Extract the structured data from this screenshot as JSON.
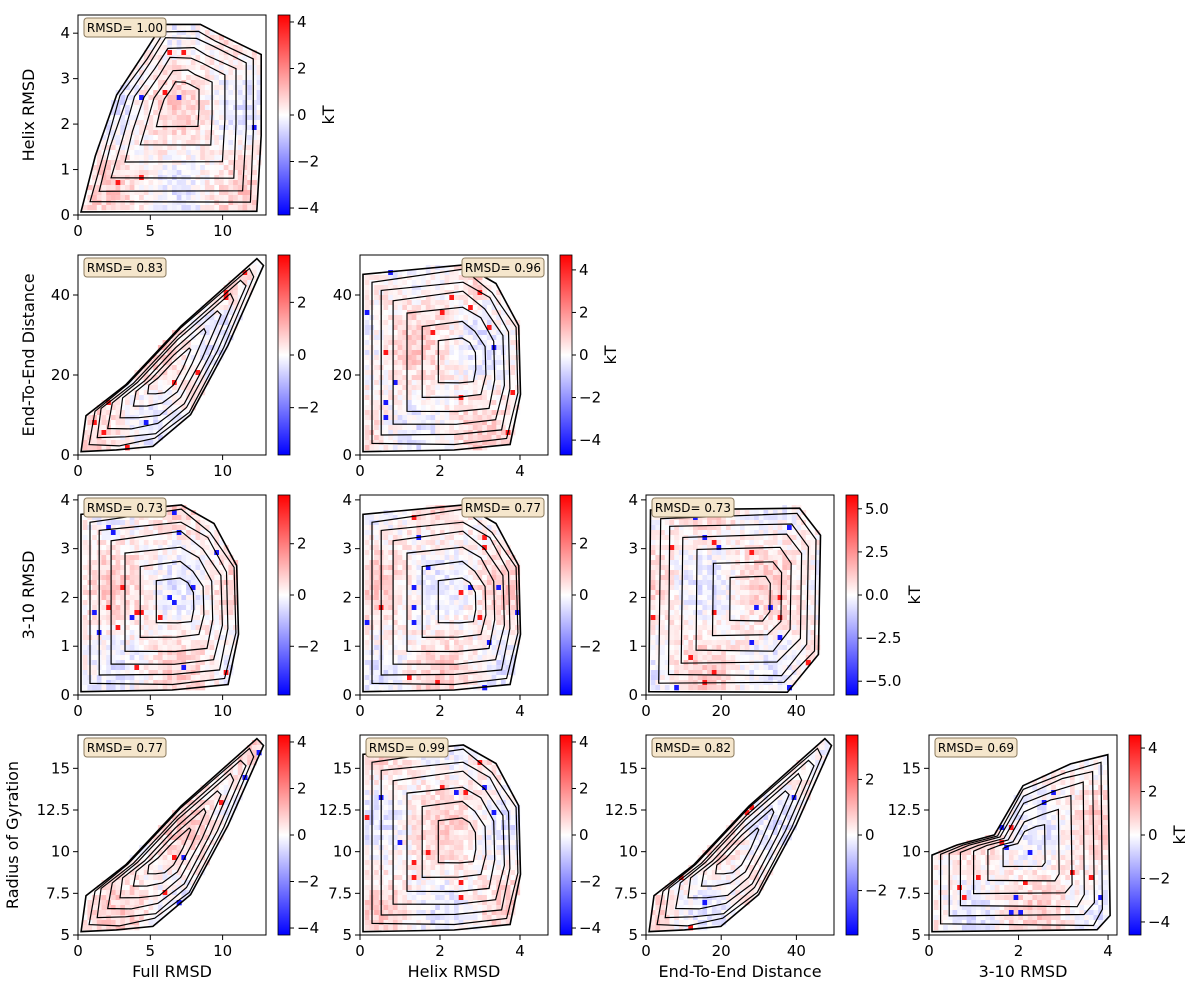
{
  "figure": {
    "axis_labels": {
      "full_rmsd": "Full RMSD",
      "helix_rmsd": "Helix RMSD",
      "end_to_end": "End-To-End Distance",
      "rmsd_3_10": "3-10 RMSD",
      "radius_gyration": "Radius of Gyration"
    },
    "colorbar_label": "kT",
    "colormap": [
      "#0000ff",
      "#ffffff",
      "#ff0000"
    ],
    "contour_color": "#000000",
    "badge_fill": "#f5e6cc",
    "badge_stroke": "#8c7b5e"
  },
  "chart_data": [
    {
      "type": "heatmap",
      "row": 0,
      "col": 0,
      "ylabel": "Helix RMSD",
      "xlabel": "",
      "xlim": [
        0,
        13
      ],
      "ylim": [
        0,
        4.4
      ],
      "xticks": [
        0,
        5,
        10
      ],
      "yticks": [
        0,
        1,
        2,
        3,
        4
      ],
      "annotation": "RMSD= 1.00",
      "colorbar": {
        "label": "kT",
        "range": [
          -4.3,
          4.3
        ],
        "ticks": [
          -4,
          -2,
          0,
          2,
          4
        ],
        "tick_labels": [
          "−4",
          "−2",
          "0",
          "2",
          "4"
        ]
      }
    },
    {
      "type": "heatmap",
      "row": 1,
      "col": 0,
      "ylabel": "End-To-End Distance",
      "xlabel": "",
      "xlim": [
        0,
        13
      ],
      "ylim": [
        0,
        50
      ],
      "xticks": [
        0,
        5,
        10
      ],
      "yticks": [
        0,
        20,
        40
      ],
      "annotation": "RMSD= 0.83",
      "colorbar": {
        "label": "",
        "range": [
          -3.8,
          3.8
        ],
        "ticks": [
          -2,
          0,
          2
        ],
        "tick_labels": [
          "−2",
          "0",
          "2"
        ]
      }
    },
    {
      "type": "heatmap",
      "row": 1,
      "col": 1,
      "ylabel": "",
      "xlabel": "",
      "xlim": [
        0,
        4.7
      ],
      "ylim": [
        0,
        50
      ],
      "xticks": [
        0,
        2,
        4
      ],
      "yticks": [
        0,
        20,
        40
      ],
      "annotation": "RMSD= 0.96",
      "colorbar": {
        "label": "kT",
        "range": [
          -4.7,
          4.7
        ],
        "ticks": [
          -4,
          -2,
          0,
          2,
          4
        ],
        "tick_labels": [
          "−4",
          "−2",
          "0",
          "2",
          "4"
        ]
      }
    },
    {
      "type": "heatmap",
      "row": 2,
      "col": 0,
      "ylabel": "3-10 RMSD",
      "xlabel": "",
      "xlim": [
        0,
        13
      ],
      "ylim": [
        0,
        4.1
      ],
      "xticks": [
        0,
        5,
        10
      ],
      "yticks": [
        0,
        1,
        2,
        3,
        4
      ],
      "annotation": "RMSD= 0.73",
      "colorbar": {
        "label": "",
        "range": [
          -3.9,
          3.9
        ],
        "ticks": [
          -2,
          0,
          2
        ],
        "tick_labels": [
          "−2",
          "0",
          "2"
        ]
      }
    },
    {
      "type": "heatmap",
      "row": 2,
      "col": 1,
      "ylabel": "",
      "xlabel": "",
      "xlim": [
        0,
        4.7
      ],
      "ylim": [
        0,
        4.1
      ],
      "xticks": [
        0,
        2,
        4
      ],
      "yticks": [
        0,
        1,
        2,
        3,
        4
      ],
      "annotation": "RMSD= 0.77",
      "colorbar": {
        "label": "",
        "range": [
          -3.9,
          3.9
        ],
        "ticks": [
          -2,
          0,
          2
        ],
        "tick_labels": [
          "−2",
          "0",
          "2"
        ]
      }
    },
    {
      "type": "heatmap",
      "row": 2,
      "col": 2,
      "ylabel": "",
      "xlabel": "",
      "xlim": [
        0,
        50
      ],
      "ylim": [
        0,
        4.1
      ],
      "xticks": [
        0,
        20,
        40
      ],
      "yticks": [
        0,
        1,
        2,
        3,
        4
      ],
      "annotation": "RMSD= 0.73",
      "colorbar": {
        "label": "kT",
        "range": [
          -5.8,
          5.8
        ],
        "ticks": [
          -5,
          -2.5,
          0,
          2.5,
          5
        ],
        "tick_labels": [
          "−5.0",
          "−2.5",
          "0.0",
          "2.5",
          "5.0"
        ]
      }
    },
    {
      "type": "heatmap",
      "row": 3,
      "col": 0,
      "ylabel": "Radius of Gyration",
      "xlabel": "Full RMSD",
      "xlim": [
        0,
        13
      ],
      "ylim": [
        5,
        17
      ],
      "xticks": [
        0,
        5,
        10
      ],
      "yticks": [
        5,
        7.5,
        10,
        12.5,
        15
      ],
      "annotation": "RMSD= 0.77",
      "colorbar": {
        "label": "",
        "range": [
          -4.3,
          4.3
        ],
        "ticks": [
          -4,
          -2,
          0,
          2,
          4
        ],
        "tick_labels": [
          "−4",
          "−2",
          "0",
          "2",
          "4"
        ]
      }
    },
    {
      "type": "heatmap",
      "row": 3,
      "col": 1,
      "ylabel": "",
      "xlabel": "Helix RMSD",
      "xlim": [
        0,
        4.7
      ],
      "ylim": [
        5,
        17
      ],
      "xticks": [
        0,
        2,
        4
      ],
      "yticks": [
        5,
        7.5,
        10,
        12.5,
        15
      ],
      "annotation": "RMSD= 0.99",
      "colorbar": {
        "label": "",
        "range": [
          -4.3,
          4.3
        ],
        "ticks": [
          -4,
          -2,
          0,
          2,
          4
        ],
        "tick_labels": [
          "−4",
          "−2",
          "0",
          "2",
          "4"
        ]
      }
    },
    {
      "type": "heatmap",
      "row": 3,
      "col": 2,
      "ylabel": "",
      "xlabel": "End-To-End Distance",
      "xlim": [
        0,
        50
      ],
      "ylim": [
        5,
        17
      ],
      "xticks": [
        0,
        20,
        40
      ],
      "yticks": [
        5,
        7.5,
        10,
        12.5,
        15
      ],
      "annotation": "RMSD= 0.82",
      "colorbar": {
        "label": "",
        "range": [
          -3.6,
          3.6
        ],
        "ticks": [
          -2,
          0,
          2
        ],
        "tick_labels": [
          "−2",
          "0",
          "2"
        ]
      }
    },
    {
      "type": "heatmap",
      "row": 3,
      "col": 3,
      "ylabel": "",
      "xlabel": "3-10 RMSD",
      "xlim": [
        0,
        4.2
      ],
      "ylim": [
        5,
        17
      ],
      "xticks": [
        0,
        2,
        4
      ],
      "yticks": [
        5,
        7.5,
        10,
        12.5,
        15
      ],
      "annotation": "RMSD= 0.69",
      "colorbar": {
        "label": "kT",
        "range": [
          -4.6,
          4.6
        ],
        "ticks": [
          -4,
          -2,
          0,
          2,
          4
        ],
        "tick_labels": [
          "−4",
          "−2",
          "0",
          "2",
          "4"
        ]
      }
    }
  ]
}
